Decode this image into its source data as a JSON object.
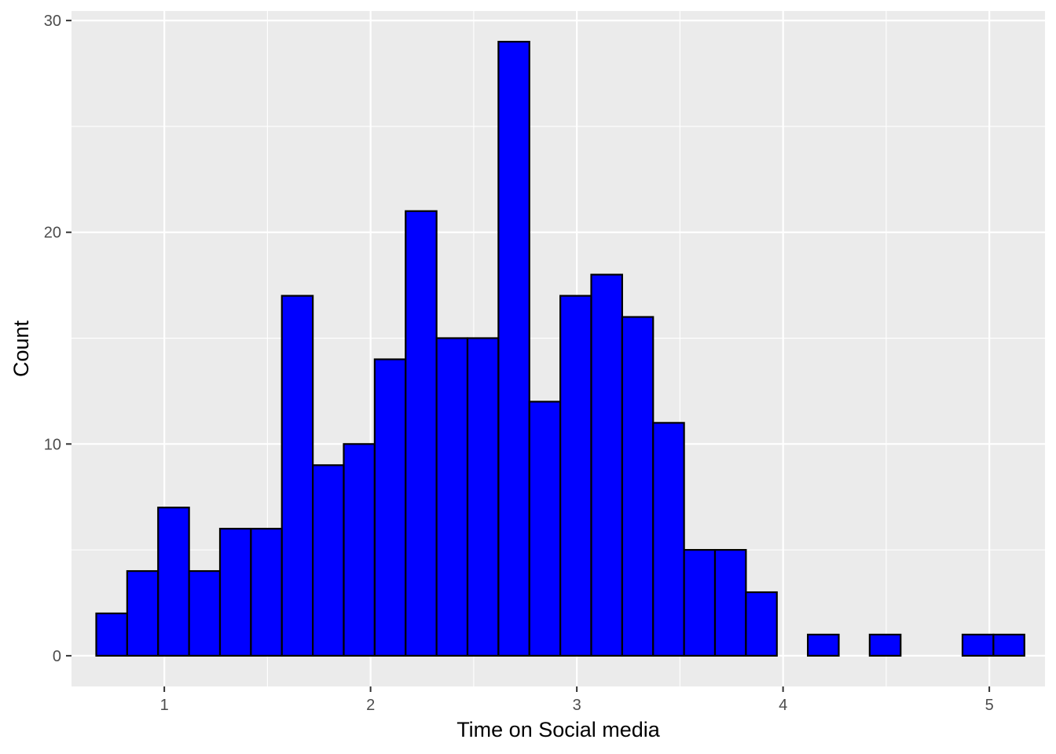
{
  "chart_data": {
    "type": "bar",
    "subtype": "histogram",
    "title": "",
    "xlabel": "Time on Social media",
    "ylabel": "Count",
    "xlim": [
      0.55,
      5.27
    ],
    "ylim": [
      -1.45,
      30.45
    ],
    "x_ticks": [
      1,
      2,
      3,
      4,
      5
    ],
    "y_ticks": [
      0,
      10,
      20,
      30
    ],
    "bin_width": 0.15,
    "bins_start": 0.67,
    "values": [
      2,
      4,
      7,
      4,
      6,
      6,
      17,
      9,
      10,
      14,
      21,
      15,
      15,
      29,
      12,
      17,
      18,
      16,
      11,
      5,
      5,
      3,
      0,
      1,
      0,
      1,
      0,
      0,
      1,
      1
    ],
    "colors": {
      "panel_background": "#ebebeb",
      "grid": "#ffffff",
      "bar_fill": "#0000ff",
      "bar_outline": "#000000"
    },
    "grid": true,
    "legend": "none"
  }
}
